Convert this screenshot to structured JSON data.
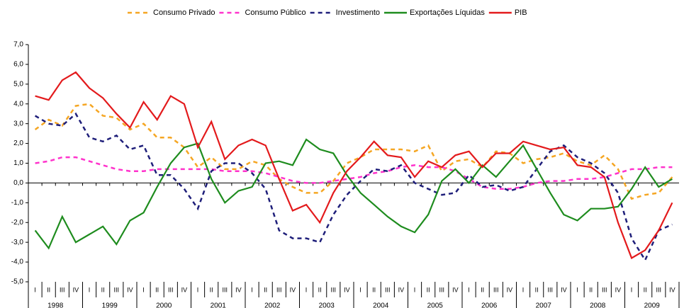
{
  "chart_data": {
    "type": "line",
    "categories": [
      "I",
      "II",
      "III",
      "IV",
      "I",
      "II",
      "III",
      "IV",
      "I",
      "II",
      "III",
      "IV",
      "I",
      "II",
      "III",
      "IV",
      "I",
      "II",
      "III",
      "IV",
      "I",
      "II",
      "III",
      "IV",
      "I",
      "II",
      "III",
      "IV",
      "I",
      "II",
      "III",
      "IV",
      "I",
      "II",
      "III",
      "IV",
      "I",
      "II",
      "III",
      "IV",
      "I",
      "II",
      "III",
      "IV",
      "I",
      "II",
      "III",
      "IV"
    ],
    "year_groups": [
      "1998",
      "1999",
      "2000",
      "2001",
      "2002",
      "2003",
      "2004",
      "2005",
      "2006",
      "2007",
      "2008",
      "2009"
    ],
    "series": [
      {
        "name": "Consumo Privado",
        "color": "#f5a623",
        "dash": true,
        "values": [
          2.7,
          3.2,
          2.9,
          3.9,
          4.0,
          3.4,
          3.3,
          2.7,
          3.0,
          2.3,
          2.3,
          1.8,
          0.8,
          1.3,
          0.7,
          0.7,
          1.1,
          0.9,
          0.2,
          -0.2,
          -0.5,
          -0.5,
          0.1,
          1.0,
          1.3,
          1.7,
          1.7,
          1.7,
          1.6,
          1.9,
          0.6,
          1.1,
          1.2,
          0.8,
          1.6,
          1.5,
          1.0,
          1.2,
          1.3,
          1.5,
          1.1,
          0.9,
          1.4,
          0.7,
          -0.8,
          -0.6,
          -0.5,
          0.3
        ]
      },
      {
        "name": "Consumo Público",
        "color": "#ff33cc",
        "dash": true,
        "values": [
          1.0,
          1.1,
          1.3,
          1.3,
          1.1,
          0.9,
          0.7,
          0.6,
          0.6,
          0.7,
          0.7,
          0.7,
          0.7,
          0.7,
          0.6,
          0.6,
          0.6,
          0.5,
          0.3,
          0.1,
          0.0,
          0.0,
          0.1,
          0.2,
          0.3,
          0.5,
          0.6,
          0.8,
          0.9,
          0.8,
          0.8,
          0.6,
          0.2,
          -0.2,
          -0.3,
          -0.3,
          -0.2,
          0.0,
          0.1,
          0.1,
          0.2,
          0.2,
          0.3,
          0.5,
          0.7,
          0.7,
          0.8,
          0.8
        ]
      },
      {
        "name": "Investimento",
        "color": "#1f1f7a",
        "dash": true,
        "values": [
          3.4,
          3.0,
          2.9,
          3.5,
          2.3,
          2.1,
          2.4,
          1.7,
          1.9,
          0.4,
          0.4,
          -0.3,
          -1.3,
          0.6,
          1.0,
          1.0,
          0.5,
          -0.3,
          -2.4,
          -2.8,
          -2.8,
          -3.0,
          -1.6,
          -0.6,
          0.1,
          0.7,
          0.6,
          0.9,
          0.0,
          -0.3,
          -0.6,
          -0.5,
          0.4,
          -0.2,
          -0.1,
          -0.4,
          -0.2,
          0.7,
          1.6,
          1.9,
          1.3,
          1.0,
          0.5,
          -0.5,
          -2.8,
          -3.9,
          -2.4,
          -2.1
        ]
      },
      {
        "name": "Exportações Líquidas",
        "color": "#1e8c1e",
        "dash": false,
        "values": [
          -2.4,
          -3.3,
          -1.7,
          -3.0,
          -2.6,
          -2.2,
          -3.1,
          -1.9,
          -1.5,
          -0.2,
          1.0,
          1.8,
          2.0,
          0.2,
          -1.0,
          -0.4,
          -0.2,
          1.0,
          1.1,
          0.9,
          2.2,
          1.7,
          1.5,
          0.4,
          -0.5,
          -1.1,
          -1.7,
          -2.2,
          -2.5,
          -1.6,
          0.1,
          0.7,
          0.0,
          0.9,
          0.3,
          1.1,
          1.9,
          0.7,
          -0.5,
          -1.6,
          -1.9,
          -1.3,
          -1.3,
          -1.2,
          -0.3,
          0.8,
          -0.2,
          0.2
        ]
      },
      {
        "name": "PIB",
        "color": "#e31a1c",
        "dash": false,
        "values": [
          4.4,
          4.2,
          5.2,
          5.6,
          4.8,
          4.3,
          3.5,
          2.8,
          4.1,
          3.2,
          4.4,
          4.0,
          1.8,
          3.1,
          1.2,
          1.9,
          2.2,
          1.9,
          0.2,
          -1.4,
          -1.1,
          -2.0,
          -0.5,
          0.6,
          1.3,
          2.1,
          1.4,
          1.3,
          0.3,
          1.1,
          0.8,
          1.4,
          1.6,
          0.8,
          1.5,
          1.5,
          2.1,
          1.9,
          1.7,
          1.8,
          0.9,
          0.8,
          0.3,
          -2.0,
          -3.8,
          -3.4,
          -2.4,
          -1.0
        ]
      }
    ],
    "ylim": [
      -5,
      7
    ],
    "yticks": [
      {
        "value": -5,
        "label": "-5,0"
      },
      {
        "value": -4,
        "label": "-4,0"
      },
      {
        "value": -3,
        "label": "-3,0"
      },
      {
        "value": -2,
        "label": "-2,0"
      },
      {
        "value": -1,
        "label": "-1,0"
      },
      {
        "value": 0,
        "label": "0,0"
      },
      {
        "value": 1,
        "label": "1,0"
      },
      {
        "value": 2,
        "label": "2,0"
      },
      {
        "value": 3,
        "label": "3,0"
      },
      {
        "value": 4,
        "label": "4,0"
      },
      {
        "value": 5,
        "label": "5,0"
      },
      {
        "value": 6,
        "label": "6,0"
      },
      {
        "value": 7,
        "label": "7,0"
      }
    ],
    "grid": false,
    "legend": "top"
  }
}
